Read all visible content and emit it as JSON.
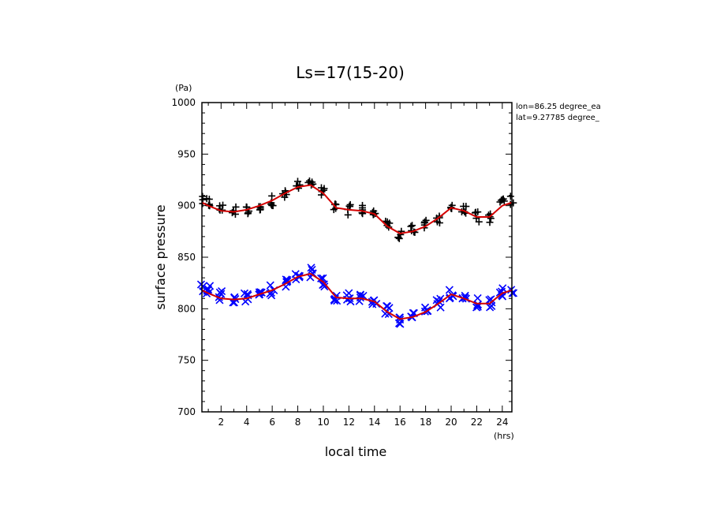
{
  "chart_data": {
    "type": "scatter",
    "title": "Ls=17(15-20)",
    "xlabel": "local time",
    "ylabel": "surface pressure",
    "x_unit": "(hrs)",
    "y_unit": "(Pa)",
    "xlim": [
      0.5,
      24.75
    ],
    "ylim": [
      700,
      1000
    ],
    "xticks": [
      "2",
      "4",
      "6",
      "8",
      "10",
      "12",
      "14",
      "16",
      "18",
      "20",
      "22",
      "24"
    ],
    "yticks": [
      "700",
      "750",
      "800",
      "850",
      "900",
      "950",
      "1000"
    ],
    "annotations": [
      "lon=86.25 degree_ea",
      "lat=9.27785 degree_"
    ],
    "grid": false,
    "series": [
      {
        "marker": "plus",
        "color": "#000000",
        "x": [
          0.5,
          1,
          2,
          3,
          4,
          5,
          6,
          7,
          8,
          9,
          10,
          11,
          12,
          13,
          14,
          15,
          16,
          17,
          18,
          19,
          20,
          21,
          22,
          23,
          24,
          24.75
        ],
        "values": [
          904,
          903,
          897,
          895,
          895,
          900,
          905,
          911,
          919,
          921,
          913,
          898,
          896,
          896,
          893,
          881,
          873,
          876,
          881,
          888,
          899,
          895,
          889,
          888,
          902,
          905
        ],
        "spread": 5
      },
      {
        "marker": "x",
        "color": "#0000ff",
        "x": [
          0.5,
          1,
          2,
          3,
          4,
          5,
          6,
          7,
          8,
          9,
          10,
          11,
          12,
          13,
          14,
          15,
          16,
          17,
          18,
          19,
          20,
          21,
          22,
          23,
          24,
          24.75
        ],
        "values": [
          820,
          819,
          813,
          810,
          810,
          814,
          818,
          825,
          832,
          835,
          826,
          812,
          811,
          811,
          809,
          798,
          790,
          792,
          798,
          805,
          815,
          811,
          806,
          806,
          817,
          820
        ],
        "spread": 5
      },
      {
        "marker": "line",
        "color": "#d40000",
        "x": [
          0.5,
          1,
          2,
          3,
          4,
          5,
          6,
          7,
          8,
          9,
          10,
          11,
          12,
          13,
          14,
          15,
          16,
          17,
          18,
          19,
          20,
          21,
          22,
          23,
          24,
          24.75
        ],
        "values": [
          903,
          900,
          895,
          894,
          896,
          900,
          905,
          912,
          918,
          920,
          912,
          898,
          896,
          895,
          892,
          880,
          873,
          875,
          880,
          888,
          898,
          895,
          889,
          889,
          900,
          903
        ]
      },
      {
        "marker": "line",
        "color": "#d40000",
        "x": [
          0.5,
          1,
          2,
          3,
          4,
          5,
          6,
          7,
          8,
          9,
          10,
          11,
          12,
          13,
          14,
          15,
          16,
          17,
          18,
          19,
          20,
          21,
          22,
          23,
          24,
          24.75
        ],
        "values": [
          818,
          815,
          810,
          809,
          810,
          814,
          818,
          824,
          831,
          834,
          826,
          811,
          810,
          810,
          807,
          797,
          790,
          792,
          797,
          805,
          814,
          810,
          805,
          805,
          815,
          818
        ]
      }
    ]
  }
}
